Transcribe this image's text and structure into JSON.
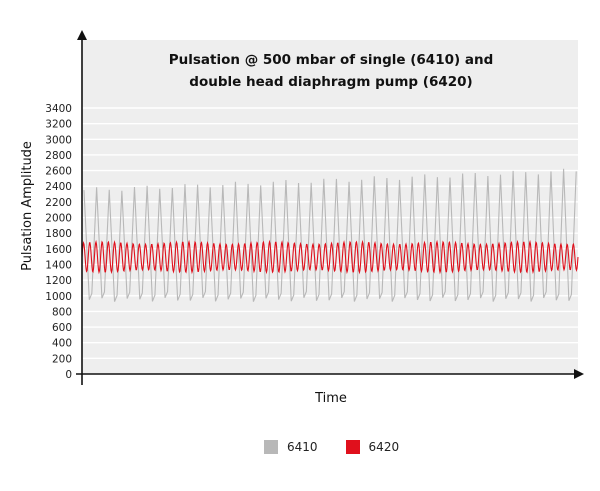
{
  "chart_data": {
    "type": "line",
    "title": "Pulsation @ 500 mbar of single (6410) and double head diaphragm pump (6420)",
    "title_lines": [
      "Pulsation @ 500 mbar of single (6410) and",
      "double head diaphragm pump (6420)"
    ],
    "xlabel": "Time",
    "ylabel": "Pulsation Amplitude",
    "ylim": [
      0,
      3400
    ],
    "yticks": [
      0,
      200,
      400,
      600,
      800,
      1000,
      1200,
      1400,
      1600,
      1800,
      2000,
      2200,
      2400,
      2600,
      2800,
      3000,
      3200,
      3400
    ],
    "grid": true,
    "legend_position": "bottom",
    "series": [
      {
        "name": "6410",
        "color": "#b8b8b8",
        "description": "Single head pump: periodic sawtooth pulsation, ~39 cycles",
        "cycles": 39,
        "min": 950,
        "peak_start": 2350,
        "peak_end": 2600
      },
      {
        "name": "6420",
        "color": "#e0101c",
        "description": "Double head pump: sinusoidal pulsation at ~2x frequency",
        "cycles": 80,
        "min": 1300,
        "max": 1690
      }
    ]
  },
  "legend": {
    "items": [
      {
        "label": "6410",
        "color": "#b8b8b8"
      },
      {
        "label": "6420",
        "color": "#e0101c"
      }
    ]
  }
}
